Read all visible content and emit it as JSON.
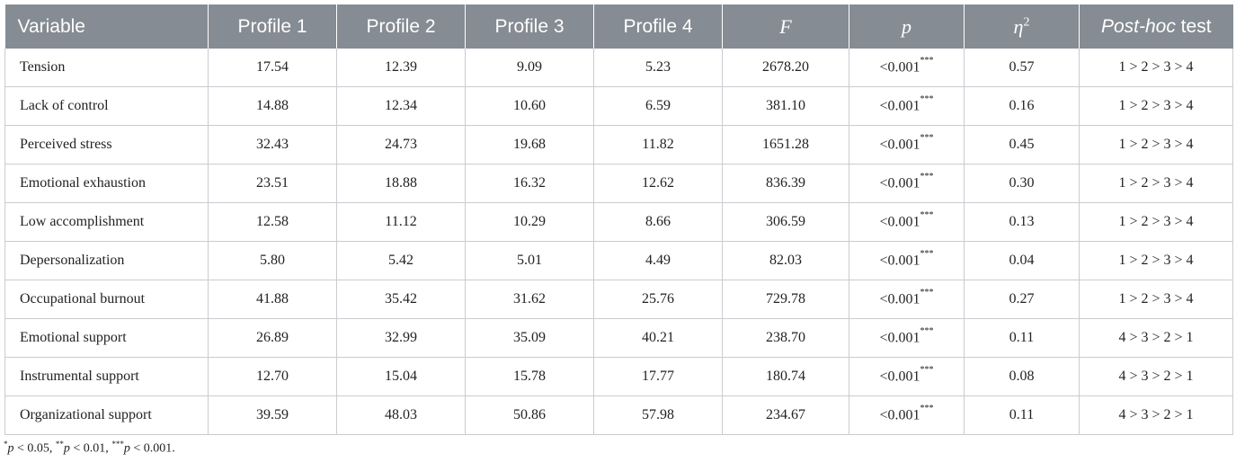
{
  "headers": {
    "variable": "Variable",
    "profile1": "Profile 1",
    "profile2": "Profile 2",
    "profile3": "Profile 3",
    "profile4": "Profile 4",
    "f": "F",
    "p": "p",
    "eta": "η",
    "eta_sup": "2",
    "posthoc_italic": "Post-hoc",
    "posthoc_rest": " test"
  },
  "rows": [
    {
      "variable": "Tension",
      "p1": "17.54",
      "p2": "12.39",
      "p3": "9.09",
      "p4": "5.23",
      "f": "2678.20",
      "p": "<0.001",
      "sig": "***",
      "eta2": "0.57",
      "posthoc": "1 > 2 > 3 > 4"
    },
    {
      "variable": "Lack of control",
      "p1": "14.88",
      "p2": "12.34",
      "p3": "10.60",
      "p4": "6.59",
      "f": "381.10",
      "p": "<0.001",
      "sig": "***",
      "eta2": "0.16",
      "posthoc": "1 > 2 > 3 > 4"
    },
    {
      "variable": "Perceived stress",
      "p1": "32.43",
      "p2": "24.73",
      "p3": "19.68",
      "p4": "11.82",
      "f": "1651.28",
      "p": "<0.001",
      "sig": "***",
      "eta2": "0.45",
      "posthoc": "1 > 2 > 3 > 4"
    },
    {
      "variable": "Emotional exhaustion",
      "p1": "23.51",
      "p2": "18.88",
      "p3": "16.32",
      "p4": "12.62",
      "f": "836.39",
      "p": "<0.001",
      "sig": "***",
      "eta2": "0.30",
      "posthoc": "1 > 2 > 3 > 4"
    },
    {
      "variable": "Low accomplishment",
      "p1": "12.58",
      "p2": "11.12",
      "p3": "10.29",
      "p4": "8.66",
      "f": "306.59",
      "p": "<0.001",
      "sig": "***",
      "eta2": "0.13",
      "posthoc": "1 > 2 > 3 > 4"
    },
    {
      "variable": "Depersonalization",
      "p1": "5.80",
      "p2": "5.42",
      "p3": "5.01",
      "p4": "4.49",
      "f": "82.03",
      "p": "<0.001",
      "sig": "***",
      "eta2": "0.04",
      "posthoc": "1 > 2 > 3 > 4"
    },
    {
      "variable": "Occupational burnout",
      "p1": "41.88",
      "p2": "35.42",
      "p3": "31.62",
      "p4": "25.76",
      "f": "729.78",
      "p": "<0.001",
      "sig": "***",
      "eta2": "0.27",
      "posthoc": "1 > 2 > 3 > 4"
    },
    {
      "variable": "Emotional support",
      "p1": "26.89",
      "p2": "32.99",
      "p3": "35.09",
      "p4": "40.21",
      "f": "238.70",
      "p": "<0.001",
      "sig": "***",
      "eta2": "0.11",
      "posthoc": "4 > 3 > 2 > 1"
    },
    {
      "variable": "Instrumental support",
      "p1": "12.70",
      "p2": "15.04",
      "p3": "15.78",
      "p4": "17.77",
      "f": "180.74",
      "p": "<0.001",
      "sig": "***",
      "eta2": "0.08",
      "posthoc": "4 > 3 > 2 > 1"
    },
    {
      "variable": "Organizational support",
      "p1": "39.59",
      "p2": "48.03",
      "p3": "50.86",
      "p4": "57.98",
      "f": "234.67",
      "p": "<0.001",
      "sig": "***",
      "eta2": "0.11",
      "posthoc": "4 > 3 > 2 > 1"
    }
  ],
  "footnote": {
    "s1": "*",
    "p1": "p",
    "t1": " < 0.05, ",
    "s2": "**",
    "p2": "p",
    "t2": " < 0.01, ",
    "s3": "***",
    "p3": "p",
    "t3": " < 0.001."
  }
}
